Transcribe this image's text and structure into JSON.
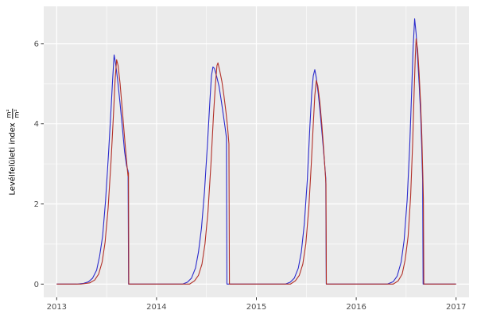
{
  "chart_data": {
    "type": "line",
    "title": "",
    "xlabel": "",
    "ylabel": "Levélfelületi index",
    "ylabel_fraction": {
      "numerator": "m²",
      "denominator": "m²"
    },
    "xlim": [
      2012.87,
      2017.13
    ],
    "ylim": [
      -0.33,
      6.93
    ],
    "x_major_ticks": [
      2013,
      2014,
      2015,
      2016,
      2017
    ],
    "x_minor_ticks": [
      2013.5,
      2014.5,
      2015.5,
      2016.5
    ],
    "y_major_ticks": [
      0,
      2,
      4,
      6
    ],
    "y_minor_ticks": [
      1,
      3,
      5
    ],
    "grid": true,
    "legend": "none",
    "panel_bg": "#EBEBEB",
    "grid_color": "#FFFFFF",
    "tick_label_color": "#4D4D4D",
    "series": [
      {
        "name": "blue",
        "color": "#2A2ACC",
        "points": [
          [
            2013.0,
            0
          ],
          [
            2013.1,
            0
          ],
          [
            2013.2,
            0
          ],
          [
            2013.27,
            0.02
          ],
          [
            2013.32,
            0.06
          ],
          [
            2013.36,
            0.15
          ],
          [
            2013.4,
            0.35
          ],
          [
            2013.43,
            0.7
          ],
          [
            2013.46,
            1.2
          ],
          [
            2013.49,
            2.1
          ],
          [
            2013.52,
            3.3
          ],
          [
            2013.545,
            4.4
          ],
          [
            2013.56,
            5.1
          ],
          [
            2013.575,
            5.72
          ],
          [
            2013.59,
            5.5
          ],
          [
            2013.61,
            5.1
          ],
          [
            2013.635,
            4.5
          ],
          [
            2013.66,
            3.85
          ],
          [
            2013.68,
            3.3
          ],
          [
            2013.7,
            2.95
          ],
          [
            2013.715,
            2.82
          ],
          [
            2013.72,
            0
          ],
          [
            2013.85,
            0
          ],
          [
            2014.0,
            0
          ],
          [
            2014.15,
            0
          ],
          [
            2014.26,
            0
          ],
          [
            2014.31,
            0.05
          ],
          [
            2014.35,
            0.15
          ],
          [
            2014.39,
            0.4
          ],
          [
            2014.42,
            0.8
          ],
          [
            2014.45,
            1.4
          ],
          [
            2014.48,
            2.3
          ],
          [
            2014.51,
            3.5
          ],
          [
            2014.535,
            4.6
          ],
          [
            2014.55,
            5.2
          ],
          [
            2014.565,
            5.42
          ],
          [
            2014.58,
            5.38
          ],
          [
            2014.6,
            5.2
          ],
          [
            2014.625,
            4.95
          ],
          [
            2014.65,
            4.55
          ],
          [
            2014.67,
            4.2
          ],
          [
            2014.69,
            3.85
          ],
          [
            2014.7,
            3.65
          ],
          [
            2014.705,
            0
          ],
          [
            2014.85,
            0
          ],
          [
            2015.0,
            0
          ],
          [
            2015.15,
            0
          ],
          [
            2015.29,
            0
          ],
          [
            2015.34,
            0.05
          ],
          [
            2015.38,
            0.15
          ],
          [
            2015.42,
            0.4
          ],
          [
            2015.45,
            0.8
          ],
          [
            2015.48,
            1.5
          ],
          [
            2015.51,
            2.6
          ],
          [
            2015.535,
            3.9
          ],
          [
            2015.555,
            4.8
          ],
          [
            2015.57,
            5.2
          ],
          [
            2015.585,
            5.35
          ],
          [
            2015.6,
            5.15
          ],
          [
            2015.62,
            4.75
          ],
          [
            2015.64,
            4.25
          ],
          [
            2015.66,
            3.7
          ],
          [
            2015.68,
            3.1
          ],
          [
            2015.695,
            2.65
          ],
          [
            2015.7,
            0
          ],
          [
            2015.85,
            0
          ],
          [
            2016.0,
            0
          ],
          [
            2016.15,
            0
          ],
          [
            2016.31,
            0
          ],
          [
            2016.37,
            0.06
          ],
          [
            2016.41,
            0.2
          ],
          [
            2016.45,
            0.55
          ],
          [
            2016.48,
            1.1
          ],
          [
            2016.51,
            2.1
          ],
          [
            2016.535,
            3.4
          ],
          [
            2016.555,
            4.8
          ],
          [
            2016.57,
            5.9
          ],
          [
            2016.585,
            6.62
          ],
          [
            2016.6,
            6.25
          ],
          [
            2016.615,
            5.65
          ],
          [
            2016.63,
            5.0
          ],
          [
            2016.645,
            4.25
          ],
          [
            2016.655,
            3.5
          ],
          [
            2016.665,
            2.6
          ],
          [
            2016.67,
            0
          ],
          [
            2016.85,
            0
          ],
          [
            2017.0,
            0
          ]
        ]
      },
      {
        "name": "red",
        "color": "#B23028",
        "points": [
          [
            2013.0,
            0
          ],
          [
            2013.12,
            0
          ],
          [
            2013.24,
            0
          ],
          [
            2013.33,
            0.03
          ],
          [
            2013.38,
            0.1
          ],
          [
            2013.42,
            0.25
          ],
          [
            2013.455,
            0.55
          ],
          [
            2013.485,
            1.05
          ],
          [
            2013.515,
            1.9
          ],
          [
            2013.545,
            3.1
          ],
          [
            2013.57,
            4.3
          ],
          [
            2013.585,
            5.1
          ],
          [
            2013.6,
            5.6
          ],
          [
            2013.615,
            5.45
          ],
          [
            2013.635,
            5.0
          ],
          [
            2013.655,
            4.4
          ],
          [
            2013.675,
            3.8
          ],
          [
            2013.695,
            3.2
          ],
          [
            2013.708,
            2.85
          ],
          [
            2013.714,
            2.7
          ],
          [
            2013.719,
            2.78
          ],
          [
            2013.722,
            0
          ],
          [
            2013.85,
            0
          ],
          [
            2014.0,
            0
          ],
          [
            2014.18,
            0
          ],
          [
            2014.33,
            0
          ],
          [
            2014.38,
            0.08
          ],
          [
            2014.42,
            0.22
          ],
          [
            2014.455,
            0.5
          ],
          [
            2014.485,
            1.0
          ],
          [
            2014.515,
            1.8
          ],
          [
            2014.545,
            3.0
          ],
          [
            2014.57,
            4.2
          ],
          [
            2014.59,
            5.0
          ],
          [
            2014.605,
            5.45
          ],
          [
            2014.615,
            5.52
          ],
          [
            2014.635,
            5.3
          ],
          [
            2014.655,
            5.05
          ],
          [
            2014.675,
            4.7
          ],
          [
            2014.695,
            4.3
          ],
          [
            2014.712,
            3.9
          ],
          [
            2014.725,
            3.5
          ],
          [
            2014.73,
            0
          ],
          [
            2014.87,
            0
          ],
          [
            2015.0,
            0
          ],
          [
            2015.18,
            0
          ],
          [
            2015.34,
            0
          ],
          [
            2015.39,
            0.08
          ],
          [
            2015.43,
            0.22
          ],
          [
            2015.465,
            0.5
          ],
          [
            2015.495,
            1.0
          ],
          [
            2015.525,
            1.9
          ],
          [
            2015.55,
            3.0
          ],
          [
            2015.57,
            4.0
          ],
          [
            2015.585,
            4.7
          ],
          [
            2015.6,
            5.08
          ],
          [
            2015.615,
            4.95
          ],
          [
            2015.635,
            4.55
          ],
          [
            2015.655,
            4.0
          ],
          [
            2015.67,
            3.5
          ],
          [
            2015.685,
            2.95
          ],
          [
            2015.697,
            2.5
          ],
          [
            2015.701,
            0
          ],
          [
            2015.87,
            0
          ],
          [
            2016.0,
            0
          ],
          [
            2016.2,
            0
          ],
          [
            2016.37,
            0
          ],
          [
            2016.42,
            0.08
          ],
          [
            2016.46,
            0.25
          ],
          [
            2016.49,
            0.6
          ],
          [
            2016.52,
            1.2
          ],
          [
            2016.545,
            2.2
          ],
          [
            2016.565,
            3.5
          ],
          [
            2016.58,
            4.8
          ],
          [
            2016.592,
            5.7
          ],
          [
            2016.6,
            6.12
          ],
          [
            2016.615,
            5.85
          ],
          [
            2016.63,
            5.25
          ],
          [
            2016.645,
            4.5
          ],
          [
            2016.657,
            3.7
          ],
          [
            2016.667,
            2.75
          ],
          [
            2016.673,
            2.1
          ],
          [
            2016.677,
            0
          ],
          [
            2016.87,
            0
          ],
          [
            2017.0,
            0
          ]
        ]
      }
    ]
  }
}
